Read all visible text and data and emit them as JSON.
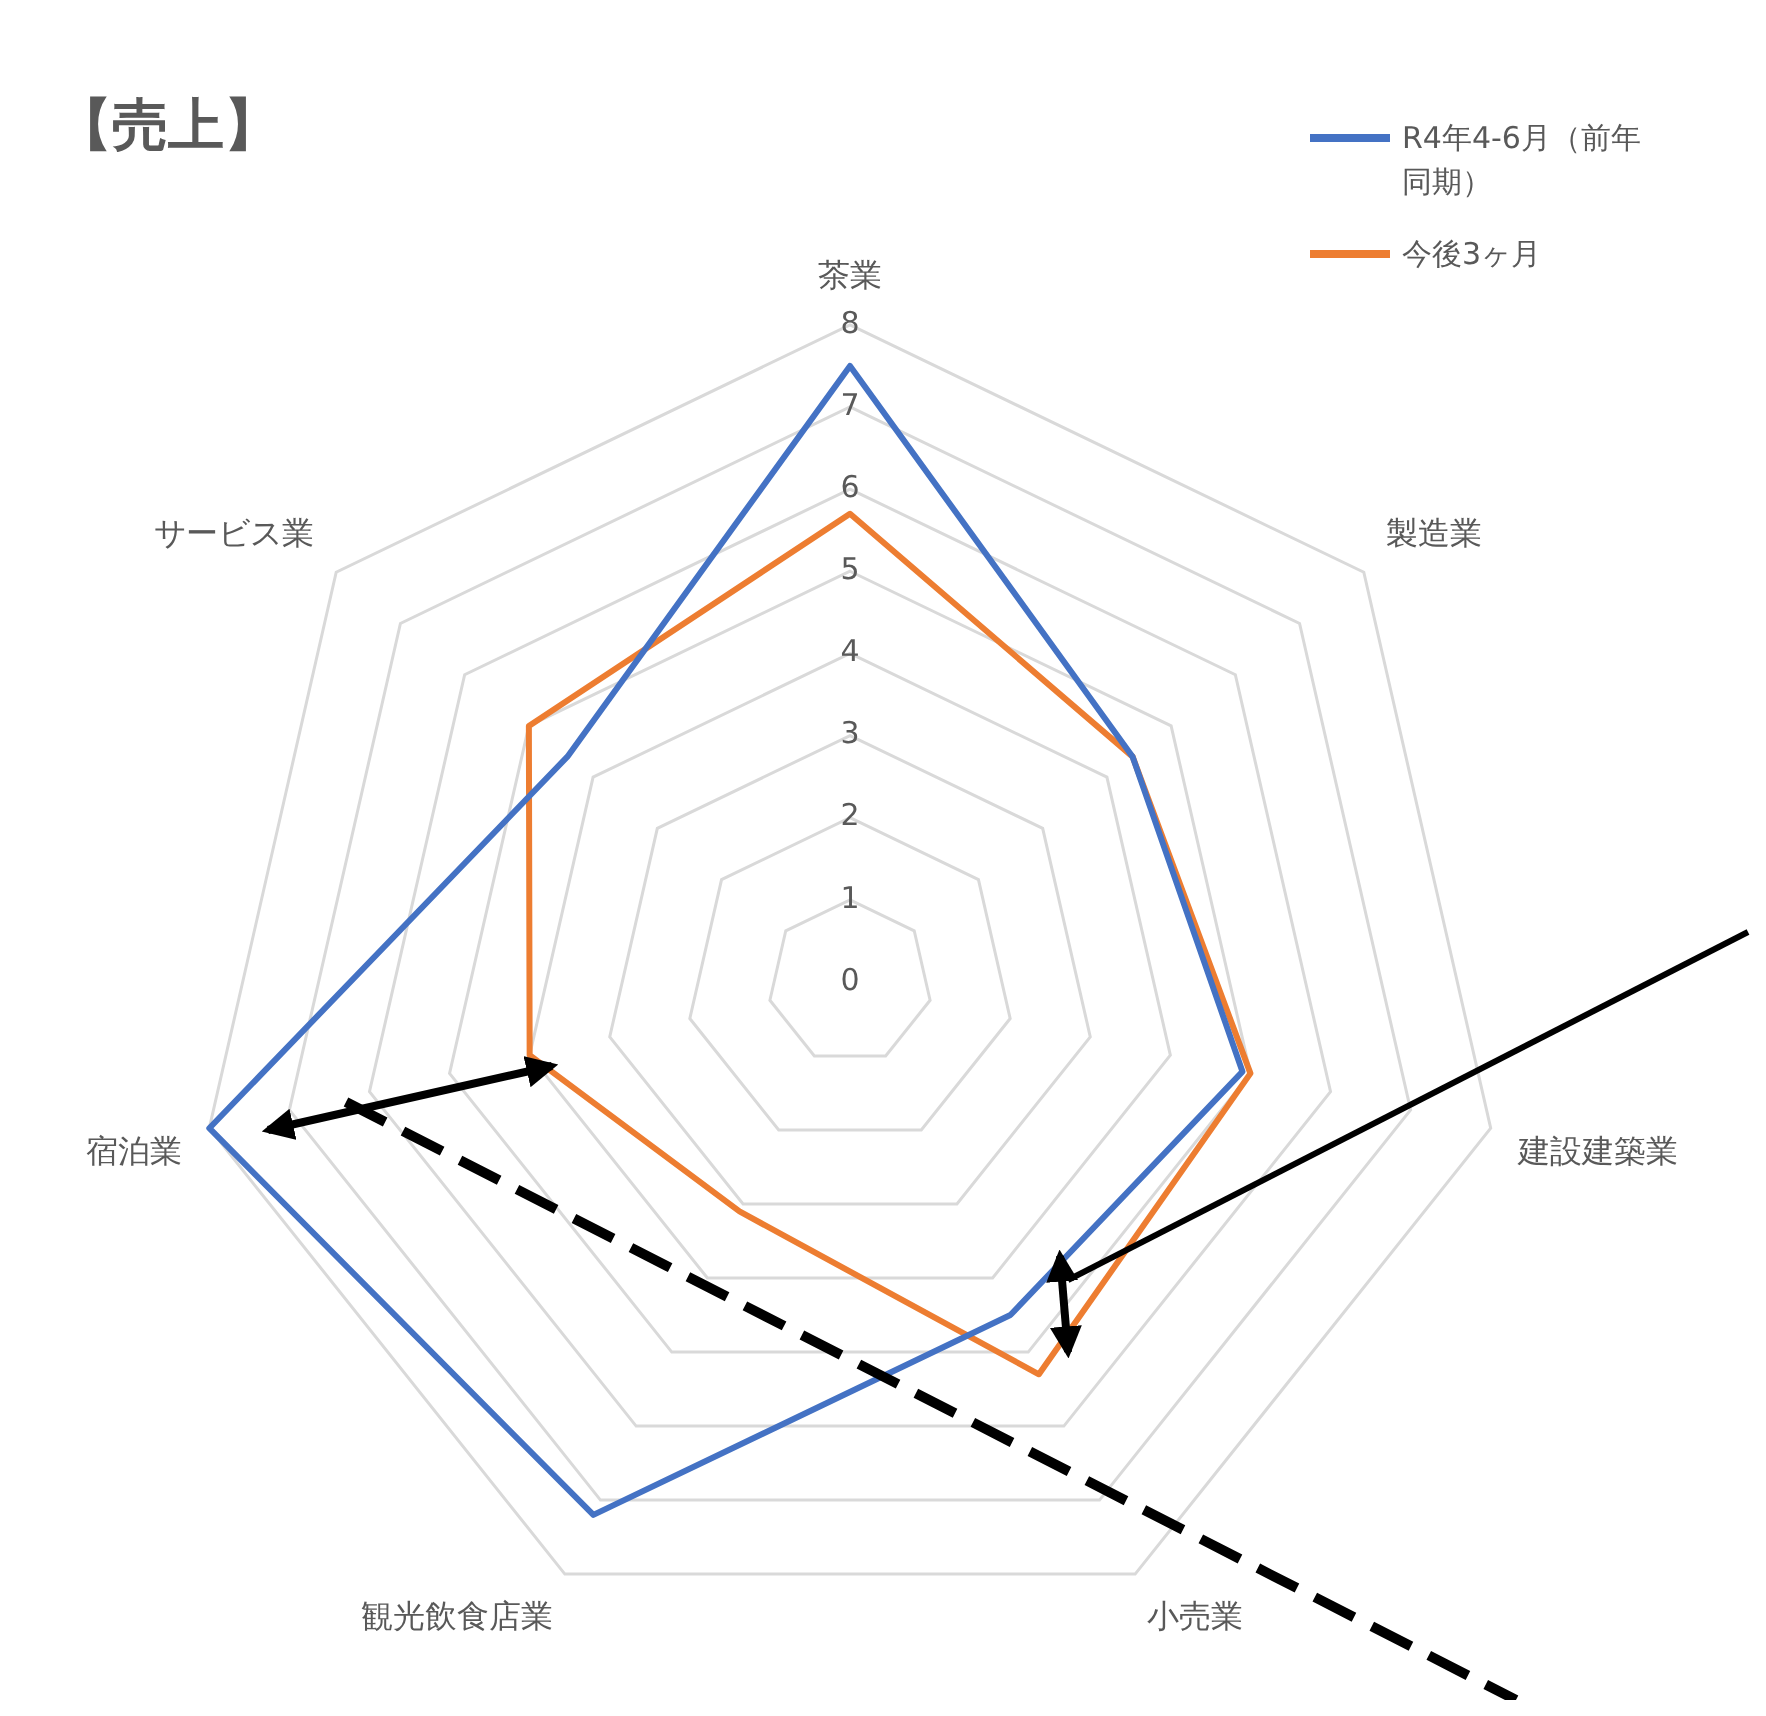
{
  "chart_data": {
    "type": "radar",
    "title": "【売上】",
    "categories": [
      "茶業",
      "製造業",
      "建設建築業",
      "小売業",
      "観光飲食店業",
      "宿泊業",
      "サービス業"
    ],
    "series": [
      {
        "name": "R4年4-6月（前年同期）",
        "color": "#4472c4",
        "values": [
          7.5,
          4.4,
          4.9,
          4.5,
          7.2,
          8,
          4.4
        ]
      },
      {
        "name": "今後3ヶ月",
        "color": "#ed7d31",
        "values": [
          5.7,
          4.4,
          5,
          5.3,
          3.1,
          4,
          5
        ]
      }
    ],
    "ylim": [
      0,
      8
    ],
    "yticks": [
      0,
      1,
      2,
      3,
      4,
      5,
      6,
      7,
      8
    ],
    "legend": "top right",
    "grid": true,
    "marker": "none"
  }
}
